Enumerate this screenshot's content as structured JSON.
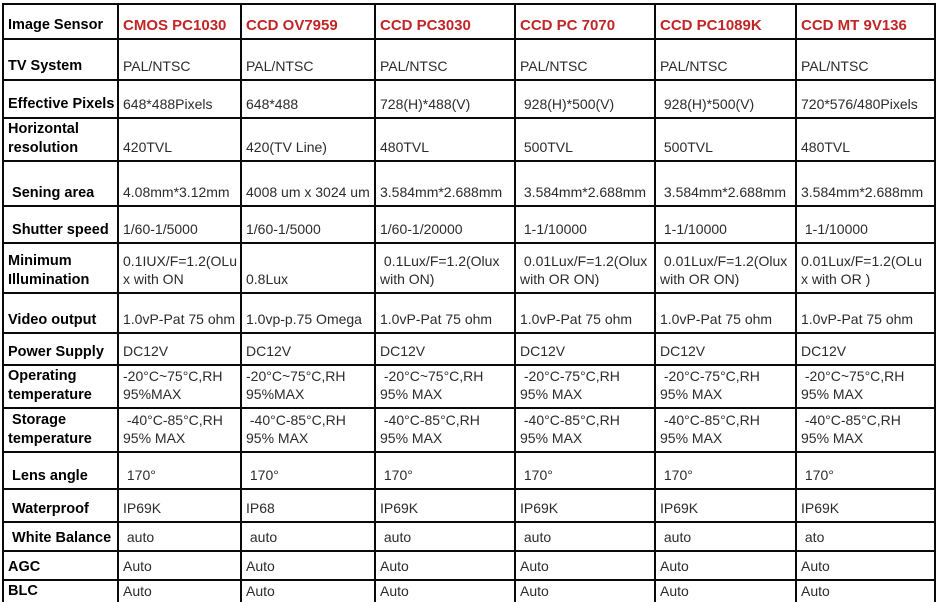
{
  "table": {
    "corner_label": "Image Sensor",
    "header_color": "#c22525",
    "columns": [
      "CMOS PC1030",
      "CCD OV7959",
      "CCD PC3030",
      "CCD PC 7070",
      "CCD PC1089K",
      "CCD MT 9V136"
    ],
    "rows": [
      {
        "label": "TV System",
        "values": [
          "PAL/NTSC",
          "PAL/NTSC",
          "PAL/NTSC",
          "PAL/NTSC",
          "PAL/NTSC",
          "PAL/NTSC"
        ]
      },
      {
        "label": "Effective Pixels",
        "values": [
          "648*488Pixels",
          "648*488",
          "728(H)*488(V)",
          " 928(H)*500(V)",
          " 928(H)*500(V)",
          "720*576/480Pixels"
        ]
      },
      {
        "label": "Horizontal\nresolution",
        "values": [
          "420TVL",
          "420(TV Line)",
          "480TVL",
          " 500TVL",
          " 500TVL",
          "480TVL"
        ]
      },
      {
        "label": " Sening area",
        "values": [
          "4.08mm*3.12mm",
          "4008 um x 3024 um",
          "3.584mm*2.688mm",
          " 3.584mm*2.688mm",
          " 3.584mm*2.688mm",
          "3.584mm*2.688mm"
        ]
      },
      {
        "label": " Shutter speed",
        "values": [
          "1/60-1/5000",
          "1/60-1/5000",
          "1/60-1/20000",
          " 1-1/10000",
          " 1-1/10000",
          " 1-1/10000"
        ]
      },
      {
        "label": "Minimum\nIllumination",
        "values": [
          "0.1IUX/F=1.2(OLu\nx with ON",
          "0.8Lux",
          " 0.1Lux/F=1.2(Olux\nwith ON)",
          " 0.01Lux/F=1.2(Olux\nwith OR ON)",
          " 0.01Lux/F=1.2(Olux\nwith OR ON)",
          "0.01Lux/F=1.2(OLu\nx with OR )"
        ]
      },
      {
        "label": "Video output",
        "values": [
          "1.0vP-Pat 75 ohm",
          "1.0vp-p.75 Omega",
          "1.0vP-Pat 75 ohm",
          "1.0vP-Pat 75 ohm",
          "1.0vP-Pat 75 ohm",
          "1.0vP-Pat 75 ohm"
        ]
      },
      {
        "label": "Power Supply",
        "values": [
          "DC12V",
          "DC12V",
          "DC12V",
          "DC12V",
          "DC12V",
          "DC12V"
        ]
      },
      {
        "label": "Operating\ntemperature",
        "values": [
          "-20°C~75°C,RH\n95%MAX",
          "-20°C~75°C,RH\n95%MAX",
          " -20°C~75°C,RH\n95% MAX",
          " -20°C-75°C,RH\n95% MAX",
          " -20°C-75°C,RH\n95% MAX",
          " -20°C~75°C,RH\n95% MAX"
        ]
      },
      {
        "label": " Storage\ntemperature",
        "values": [
          " -40°C-85°C,RH\n95% MAX",
          " -40°C-85°C,RH\n95% MAX",
          " -40°C-85°C,RH\n95% MAX",
          " -40°C-85°C,RH\n95% MAX",
          " -40°C-85°C,RH\n95% MAX",
          " -40°C-85°C,RH\n95% MAX"
        ]
      },
      {
        "label": " Lens angle",
        "values": [
          " 170°",
          " 170°",
          " 170°",
          " 170°",
          " 170°",
          " 170°"
        ]
      },
      {
        "label": " Waterproof",
        "values": [
          "IP69K",
          "IP68",
          "IP69K",
          "IP69K",
          "IP69K",
          "IP69K"
        ]
      },
      {
        "label": " White Balance",
        "values": [
          " auto",
          " auto",
          " auto",
          " auto",
          " auto",
          " ato"
        ]
      },
      {
        "label": "AGC",
        "values": [
          "Auto",
          "Auto",
          "Auto",
          "Auto",
          "Auto",
          "Auto"
        ]
      },
      {
        "label": "BLC",
        "values": [
          "Auto",
          "Auto",
          "Auto",
          "Auto",
          "Auto",
          "Auto"
        ]
      }
    ]
  }
}
